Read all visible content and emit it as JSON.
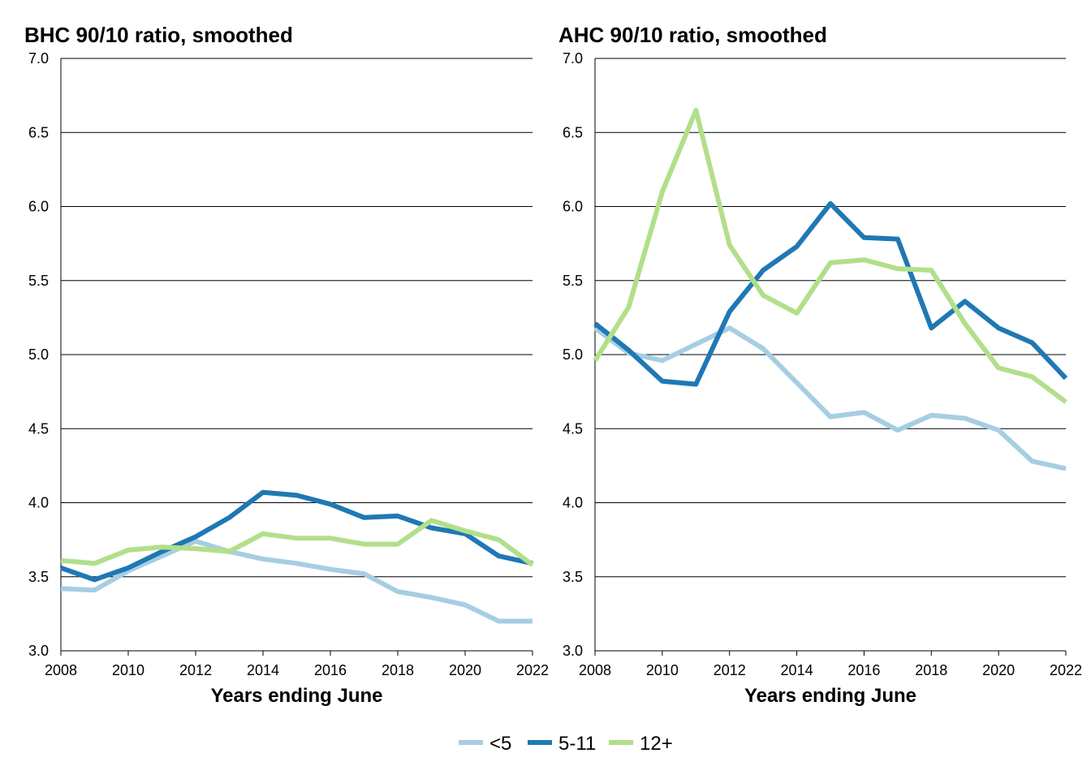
{
  "chart_data": [
    {
      "type": "line",
      "title": "BHC 90/10 ratio, smoothed",
      "xlabel": "Years ending June",
      "ylabel": "",
      "x": [
        2008,
        2009,
        2010,
        2011,
        2012,
        2013,
        2014,
        2015,
        2016,
        2017,
        2018,
        2019,
        2020,
        2021,
        2022
      ],
      "xticks": [
        "2008",
        "2010",
        "2012",
        "2014",
        "2016",
        "2018",
        "2020",
        "2022"
      ],
      "yticks": [
        "3.0",
        "3.5",
        "4.0",
        "4.5",
        "5.0",
        "5.5",
        "6.0",
        "6.5",
        "7.0"
      ],
      "xlim": [
        2008,
        2022
      ],
      "ylim": [
        3.0,
        7.0
      ],
      "grid": "horizontal",
      "series": [
        {
          "name": "<5",
          "color": "#a6cee3",
          "values": [
            3.42,
            3.41,
            3.54,
            3.64,
            3.74,
            3.67,
            3.62,
            3.59,
            3.55,
            3.52,
            3.4,
            3.36,
            3.31,
            3.2,
            3.2
          ]
        },
        {
          "name": "5-11",
          "color": "#1f78b4",
          "values": [
            3.56,
            3.48,
            3.56,
            3.67,
            3.77,
            3.9,
            4.07,
            4.05,
            3.99,
            3.9,
            3.91,
            3.83,
            3.79,
            3.64,
            3.59
          ]
        },
        {
          "name": "12+",
          "color": "#b2df8a",
          "values": [
            3.61,
            3.59,
            3.68,
            3.7,
            3.69,
            3.67,
            3.79,
            3.76,
            3.76,
            3.72,
            3.72,
            3.88,
            3.81,
            3.75,
            3.58
          ]
        }
      ]
    },
    {
      "type": "line",
      "title": "AHC 90/10 ratio, smoothed",
      "xlabel": "Years ending June",
      "ylabel": "",
      "x": [
        2008,
        2009,
        2010,
        2011,
        2012,
        2013,
        2014,
        2015,
        2016,
        2017,
        2018,
        2019,
        2020,
        2021,
        2022
      ],
      "xticks": [
        "2008",
        "2010",
        "2012",
        "2014",
        "2016",
        "2018",
        "2020",
        "2022"
      ],
      "yticks": [
        "3.0",
        "3.5",
        "4.0",
        "4.5",
        "5.0",
        "5.5",
        "6.0",
        "6.5",
        "7.0"
      ],
      "xlim": [
        2008,
        2022
      ],
      "ylim": [
        3.0,
        7.0
      ],
      "grid": "horizontal",
      "series": [
        {
          "name": "<5",
          "color": "#a6cee3",
          "values": [
            5.18,
            5.01,
            4.96,
            5.07,
            5.18,
            5.04,
            4.81,
            4.58,
            4.61,
            4.49,
            4.59,
            4.57,
            4.49,
            4.28,
            4.23
          ]
        },
        {
          "name": "5-11",
          "color": "#1f78b4",
          "values": [
            5.21,
            5.03,
            4.82,
            4.8,
            5.29,
            5.57,
            5.73,
            6.02,
            5.79,
            5.78,
            5.18,
            5.36,
            5.18,
            5.08,
            4.84
          ]
        },
        {
          "name": "12+",
          "color": "#b2df8a",
          "values": [
            4.96,
            5.32,
            6.1,
            6.65,
            5.74,
            5.4,
            5.28,
            5.62,
            5.64,
            5.58,
            5.57,
            5.21,
            4.91,
            4.85,
            4.68
          ]
        }
      ]
    }
  ],
  "legend": {
    "position": "bottom",
    "items": [
      {
        "label": "<5",
        "color": "#a6cee3"
      },
      {
        "label": "5-11",
        "color": "#1f78b4"
      },
      {
        "label": "12+",
        "color": "#b2df8a"
      }
    ]
  }
}
